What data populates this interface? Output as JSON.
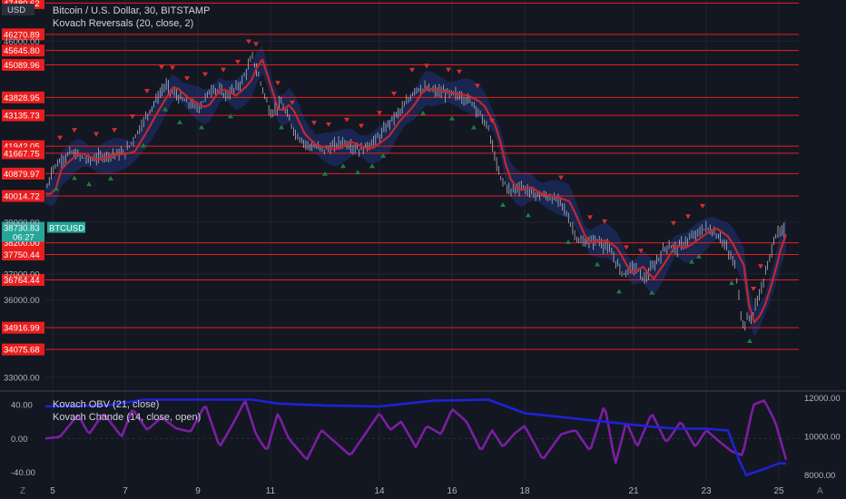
{
  "header": {
    "title": "Bitcoin / U.S. Dollar, 30, BITSTAMP",
    "indicator": "Kovach Reversals (20, close, 2)",
    "currency": "USD"
  },
  "lower_pane": {
    "obv_label": "Kovach OBV (21, close)",
    "chande_label": "Kovach Chande (14, close, open)"
  },
  "footer": {
    "left_button": "Z",
    "right_button": "A"
  },
  "colors": {
    "background": "#131722",
    "candle": "#b2b5be",
    "basis": "#c2282f",
    "band": "#1e3a8a",
    "level_line": "#e91e1e",
    "marker_down": "#d32f2f",
    "marker_up": "#1b7f3c",
    "obv": "#1e22d6",
    "chande": "#7b1fa2"
  },
  "chart_data": [
    {
      "type": "line",
      "subtype": "candlestick",
      "title": "Bitcoin / U.S. Dollar, 30, BITSTAMP",
      "x_ticks": [
        "5",
        "7",
        "9",
        "11",
        "14",
        "16",
        "18",
        "21",
        "23",
        "25"
      ],
      "y_ticks": [
        "33000.00",
        "36000.00",
        "37000.00",
        "39000.00",
        "46000.00"
      ],
      "ylim": [
        32500,
        47600
      ],
      "current_price": {
        "symbol": "BTCUSD",
        "value": "38730.83",
        "countdown": "06:27"
      },
      "key_levels": [
        "47480.62",
        "46270.89",
        "45645.80",
        "45089.96",
        "43828.95",
        "43135.73",
        "41942.05",
        "41667.75",
        "40879.97",
        "40014.72",
        "38200.00",
        "37750.44",
        "36764.44",
        "34916.99",
        "34075.68"
      ],
      "price_path": {
        "x_day": [
          4.8,
          5.0,
          5.5,
          6.0,
          6.5,
          7.0,
          7.3,
          7.7,
          8.1,
          8.5,
          9.0,
          9.4,
          9.8,
          10.2,
          10.5,
          10.8,
          11.0,
          11.3,
          11.7,
          12.0,
          12.5,
          13.0,
          13.5,
          14.0,
          14.3,
          14.7,
          15.0,
          15.4,
          15.8,
          16.2,
          16.6,
          17.0,
          17.3,
          17.6,
          17.9,
          18.2,
          18.6,
          19.0,
          19.5,
          20.0,
          20.3,
          20.7,
          21.0,
          21.3,
          21.6,
          21.9,
          22.2,
          22.6,
          23.0,
          23.4,
          23.8,
          24.0,
          24.3,
          24.6,
          24.9,
          25.2
        ],
        "close": [
          40100,
          41100,
          41700,
          41400,
          41600,
          41700,
          42400,
          43400,
          44300,
          43800,
          43400,
          44200,
          43900,
          44400,
          45400,
          44100,
          43200,
          43600,
          42400,
          42000,
          41800,
          42100,
          41800,
          42300,
          42900,
          43500,
          44200,
          44100,
          44000,
          43900,
          43600,
          42600,
          40800,
          40200,
          40400,
          40100,
          40000,
          39800,
          38200,
          38300,
          38000,
          37000,
          37300,
          36800,
          37400,
          38100,
          38000,
          38400,
          38800,
          38400,
          37300,
          35000,
          35500,
          36800,
          38500,
          38700
        ]
      },
      "basis_offset_days": 0.25,
      "band_width": 520,
      "reversal_markers": {
        "down_x_day": [
          5.2,
          5.6,
          6.2,
          6.7,
          7.2,
          7.6,
          8.0,
          8.3,
          8.7,
          9.2,
          9.7,
          10.1,
          10.4,
          10.6,
          11.2,
          11.6,
          12.2,
          12.6,
          13.1,
          13.5,
          14.0,
          14.4,
          14.9,
          15.3,
          15.9,
          16.2,
          16.7,
          17.1,
          19.0,
          19.8,
          20.2,
          20.8,
          21.2,
          22.1,
          22.5,
          22.9,
          24.3,
          24.5
        ],
        "up_x_day": [
          5.1,
          5.6,
          6.0,
          6.6,
          7.5,
          8.1,
          8.5,
          9.1,
          9.9,
          11.3,
          12.5,
          13.0,
          13.4,
          13.8,
          14.1,
          15.2,
          16.0,
          16.6,
          17.4,
          18.1,
          19.2,
          20.0,
          20.6,
          21.5,
          22.6,
          22.8,
          23.7,
          24.2
        ]
      }
    },
    {
      "type": "line",
      "series": [
        {
          "name": "Kovach OBV (21, close)",
          "axis": "right"
        },
        {
          "name": "Kovach Chande (14, close, open)",
          "axis": "left"
        }
      ],
      "y_left_ticks": [
        "40.00",
        "0.00",
        "-40.00"
      ],
      "y_right_ticks": [
        "12000.00",
        "10000.00",
        "8000.00"
      ],
      "y_left_lim": [
        -50,
        55
      ],
      "y_right_lim": [
        7700,
        12300
      ],
      "obv": {
        "x_day": [
          4.8,
          6.5,
          7.5,
          10.5,
          11.2,
          12.5,
          14.0,
          15.5,
          17.0,
          18.0,
          19.5,
          20.5,
          21.5,
          22.2,
          23.0,
          23.6,
          23.9,
          24.1,
          24.5,
          25.0,
          25.2
        ],
        "values": [
          11550,
          11600,
          11900,
          11900,
          11700,
          11600,
          11550,
          11850,
          11900,
          11200,
          10900,
          10700,
          10500,
          10400,
          10400,
          10300,
          8800,
          8000,
          8250,
          8600,
          8600
        ]
      },
      "chande": {
        "x_day": [
          4.8,
          5.2,
          5.7,
          6.0,
          6.4,
          6.9,
          7.2,
          7.6,
          8.0,
          8.4,
          8.8,
          9.2,
          9.6,
          10.0,
          10.3,
          10.6,
          10.9,
          11.2,
          11.5,
          12.0,
          12.4,
          12.8,
          13.2,
          13.6,
          14.0,
          14.3,
          14.6,
          15.0,
          15.3,
          15.7,
          16.0,
          16.4,
          16.8,
          17.1,
          17.4,
          17.7,
          18.0,
          18.5,
          19.0,
          19.4,
          19.8,
          20.2,
          20.5,
          20.8,
          21.1,
          21.5,
          21.9,
          22.3,
          22.7,
          23.0,
          23.4,
          23.7,
          24.0,
          24.3,
          24.6,
          24.9,
          25.2
        ],
        "values": [
          0,
          2,
          28,
          5,
          30,
          2,
          35,
          10,
          25,
          12,
          8,
          40,
          -10,
          20,
          45,
          5,
          -15,
          30,
          0,
          -25,
          10,
          -5,
          -20,
          5,
          30,
          10,
          20,
          -10,
          15,
          5,
          35,
          20,
          -15,
          10,
          -10,
          5,
          15,
          -25,
          5,
          10,
          -15,
          40,
          -30,
          20,
          -10,
          30,
          -5,
          20,
          -10,
          10,
          -5,
          -15,
          -20,
          40,
          45,
          20,
          -25
        ]
      }
    }
  ]
}
